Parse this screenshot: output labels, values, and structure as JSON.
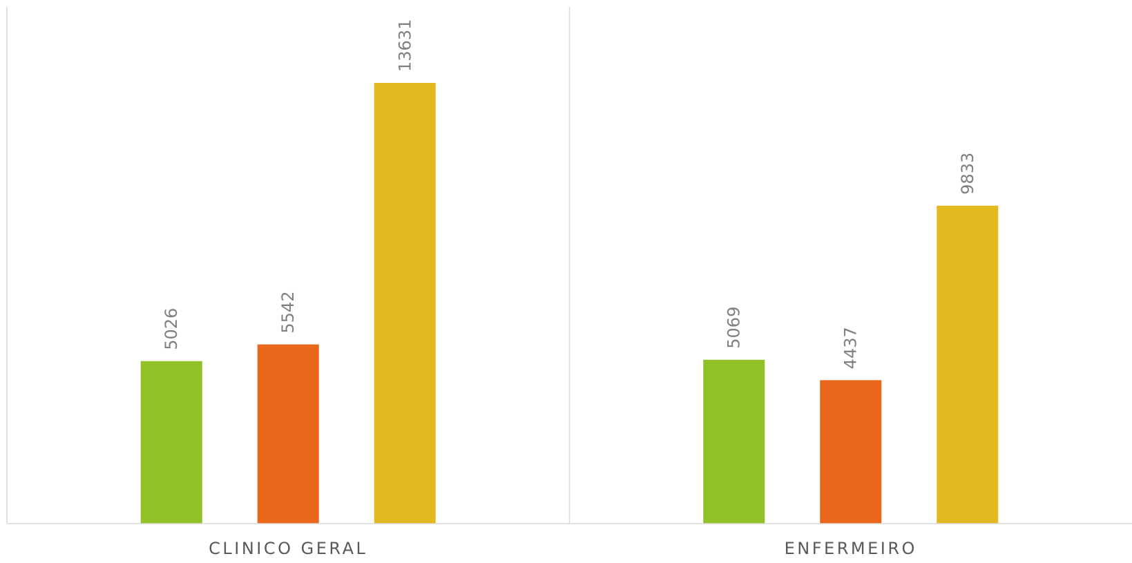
{
  "chart_data": {
    "type": "bar",
    "title": "",
    "xlabel": "",
    "ylabel": "",
    "categories": [
      "CLINICO GERAL",
      "ENFERMEIRO"
    ],
    "series": [
      {
        "color": "#92C027",
        "values": [
          5026,
          5069
        ]
      },
      {
        "color": "#E8671A",
        "values": [
          5542,
          4437
        ]
      },
      {
        "color": "#E4B920",
        "values": [
          13631,
          9833
        ]
      }
    ],
    "ylim": [
      0,
      16000
    ],
    "grid": false,
    "legend": "none",
    "data_labels": true,
    "label_color": "#7F7F7F",
    "axis_color": "#D9D9D9",
    "category_label_color": "#595959"
  }
}
